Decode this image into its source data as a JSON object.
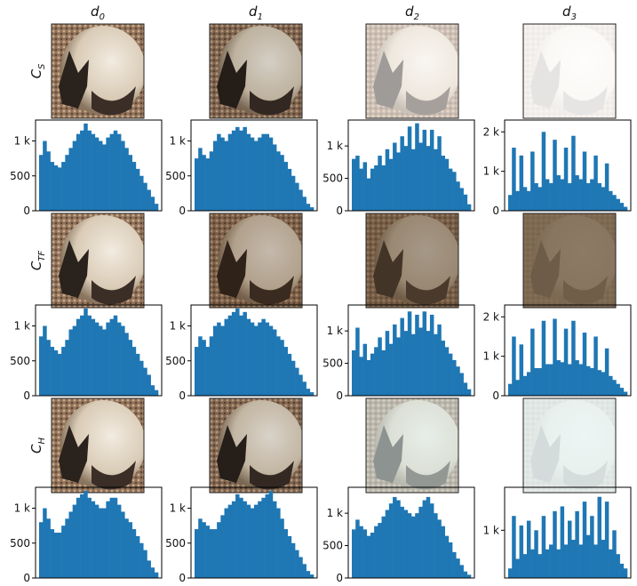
{
  "columns": [
    {
      "base": "d",
      "sub": "0"
    },
    {
      "base": "d",
      "sub": "1"
    },
    {
      "base": "d",
      "sub": "2"
    },
    {
      "base": "d",
      "sub": "3"
    }
  ],
  "rows": [
    {
      "base": "C",
      "sub": "S"
    },
    {
      "base": "C",
      "sub": "TF"
    },
    {
      "base": "C",
      "sub": "H"
    }
  ],
  "chart_data": [
    {
      "type": "histogram",
      "color": "#1f77b4",
      "ylim": [
        0,
        1300
      ],
      "yticks": [
        0,
        500,
        {
          "value": 1000,
          "label": "1 k"
        }
      ],
      "values": [
        800,
        1000,
        850,
        700,
        650,
        620,
        700,
        800,
        900,
        1000,
        1100,
        1150,
        1250,
        1150,
        1100,
        1050,
        1000,
        950,
        1050,
        1100,
        1150,
        1100,
        1000,
        900,
        800,
        700,
        600,
        500,
        400,
        300,
        200,
        100
      ]
    },
    {
      "type": "histogram",
      "color": "#1f77b4",
      "ylim": [
        0,
        1300
      ],
      "yticks": [
        0,
        500,
        {
          "value": 1000,
          "label": "1 k"
        }
      ],
      "values": [
        750,
        900,
        800,
        750,
        850,
        1000,
        1100,
        1050,
        1000,
        1100,
        1150,
        1200,
        1150,
        1200,
        1100,
        1050,
        1000,
        1050,
        1100,
        1100,
        1050,
        950,
        850,
        800,
        700,
        600,
        500,
        400,
        300,
        200,
        100,
        50
      ]
    },
    {
      "type": "histogram",
      "color": "#1f77b4",
      "ylim": [
        0,
        1400
      ],
      "yticks": [
        0,
        500,
        {
          "value": 1000,
          "label": "1 k"
        }
      ],
      "values": [
        800,
        850,
        650,
        750,
        500,
        650,
        700,
        850,
        700,
        950,
        800,
        1050,
        900,
        1150,
        1000,
        1300,
        950,
        1350,
        1050,
        1250,
        1000,
        1250,
        950,
        1150,
        850,
        800,
        650,
        600,
        450,
        350,
        250,
        100
      ]
    },
    {
      "type": "histogram",
      "color": "#1f77b4",
      "ylim": [
        0,
        2300
      ],
      "yticks": [
        0,
        {
          "value": 1000,
          "label": "1 k"
        },
        {
          "value": 2000,
          "label": "2 k"
        }
      ],
      "values": [
        400,
        1600,
        500,
        1400,
        600,
        500,
        1500,
        700,
        600,
        2000,
        800,
        700,
        1800,
        900,
        800,
        1600,
        700,
        1900,
        900,
        800,
        1500,
        700,
        800,
        1400,
        700,
        600,
        1200,
        500,
        400,
        300,
        200,
        100
      ]
    },
    {
      "type": "histogram",
      "color": "#1f77b4",
      "ylim": [
        0,
        1300
      ],
      "yticks": [
        0,
        500,
        {
          "value": 1000,
          "label": "1 k"
        }
      ],
      "values": [
        850,
        1000,
        800,
        700,
        650,
        600,
        700,
        800,
        950,
        1000,
        1100,
        1150,
        1250,
        1150,
        1100,
        1050,
        1000,
        950,
        1050,
        1100,
        1150,
        1050,
        1000,
        900,
        800,
        700,
        600,
        500,
        400,
        300,
        150,
        80
      ]
    },
    {
      "type": "histogram",
      "color": "#1f77b4",
      "ylim": [
        0,
        1300
      ],
      "yticks": [
        0,
        500,
        {
          "value": 1000,
          "label": "1 k"
        }
      ],
      "values": [
        700,
        850,
        800,
        700,
        850,
        1000,
        1050,
        1000,
        1100,
        1150,
        1200,
        1250,
        1150,
        1200,
        1100,
        1050,
        1000,
        1050,
        1100,
        1050,
        1000,
        950,
        850,
        800,
        700,
        600,
        500,
        400,
        300,
        200,
        100,
        50
      ]
    },
    {
      "type": "histogram",
      "color": "#1f77b4",
      "ylim": [
        0,
        1400
      ],
      "yticks": [
        0,
        500,
        {
          "value": 1000,
          "label": "1 k"
        }
      ],
      "values": [
        700,
        1050,
        600,
        800,
        550,
        650,
        750,
        900,
        700,
        1000,
        800,
        1100,
        900,
        1200,
        1000,
        1300,
        950,
        1250,
        1050,
        1300,
        1000,
        1250,
        950,
        1100,
        850,
        750,
        650,
        550,
        450,
        350,
        200,
        100
      ]
    },
    {
      "type": "histogram",
      "color": "#1f77b4",
      "ylim": [
        0,
        2300
      ],
      "yticks": [
        0,
        {
          "value": 1000,
          "label": "1 k"
        },
        {
          "value": 2000,
          "label": "2 k"
        }
      ],
      "values": [
        300,
        1500,
        400,
        1300,
        500,
        600,
        1700,
        700,
        700,
        1900,
        800,
        800,
        1950,
        900,
        850,
        1700,
        800,
        1900,
        900,
        800,
        1600,
        750,
        700,
        1500,
        650,
        600,
        1200,
        500,
        400,
        300,
        200,
        100
      ]
    },
    {
      "type": "histogram",
      "color": "#1f77b4",
      "ylim": [
        0,
        1300
      ],
      "yticks": [
        0,
        500,
        {
          "value": 1000,
          "label": "1 k"
        }
      ],
      "values": [
        800,
        1000,
        850,
        700,
        650,
        650,
        750,
        850,
        950,
        1050,
        1150,
        1200,
        1250,
        1150,
        1100,
        1050,
        1000,
        1000,
        1100,
        1150,
        1150,
        1050,
        950,
        850,
        800,
        700,
        600,
        500,
        400,
        250,
        150,
        80
      ]
    },
    {
      "type": "histogram",
      "color": "#1f77b4",
      "ylim": [
        0,
        1300
      ],
      "yticks": [
        0,
        500,
        {
          "value": 1000,
          "label": "1 k"
        }
      ],
      "values": [
        700,
        850,
        800,
        750,
        700,
        700,
        800,
        900,
        1000,
        1050,
        1100,
        1200,
        1150,
        1100,
        1050,
        1000,
        1050,
        1100,
        1150,
        1200,
        1250,
        1100,
        1000,
        850,
        700,
        600,
        500,
        400,
        300,
        200,
        100,
        50
      ]
    },
    {
      "type": "histogram",
      "color": "#1f77b4",
      "ylim": [
        0,
        1400
      ],
      "yticks": [
        0,
        500,
        {
          "value": 1000,
          "label": "1 k"
        }
      ],
      "values": [
        750,
        900,
        800,
        750,
        650,
        700,
        800,
        850,
        950,
        1050,
        1150,
        1250,
        1200,
        1100,
        1050,
        1000,
        950,
        1000,
        1100,
        1200,
        1250,
        1150,
        1000,
        900,
        800,
        650,
        550,
        400,
        300,
        200,
        100,
        50
      ]
    },
    {
      "type": "histogram",
      "color": "#1f77b4",
      "ylim": [
        0,
        1900
      ],
      "yticks": [
        {
          "value": 1000,
          "label": "1 k"
        }
      ],
      "values": [
        200,
        1300,
        400,
        1100,
        500,
        1200,
        600,
        1000,
        500,
        1300,
        600,
        700,
        1400,
        600,
        1500,
        700,
        1200,
        800,
        1400,
        700,
        1600,
        900,
        1300,
        700,
        1700,
        800,
        1600,
        600,
        1000,
        500,
        300,
        200
      ]
    }
  ]
}
